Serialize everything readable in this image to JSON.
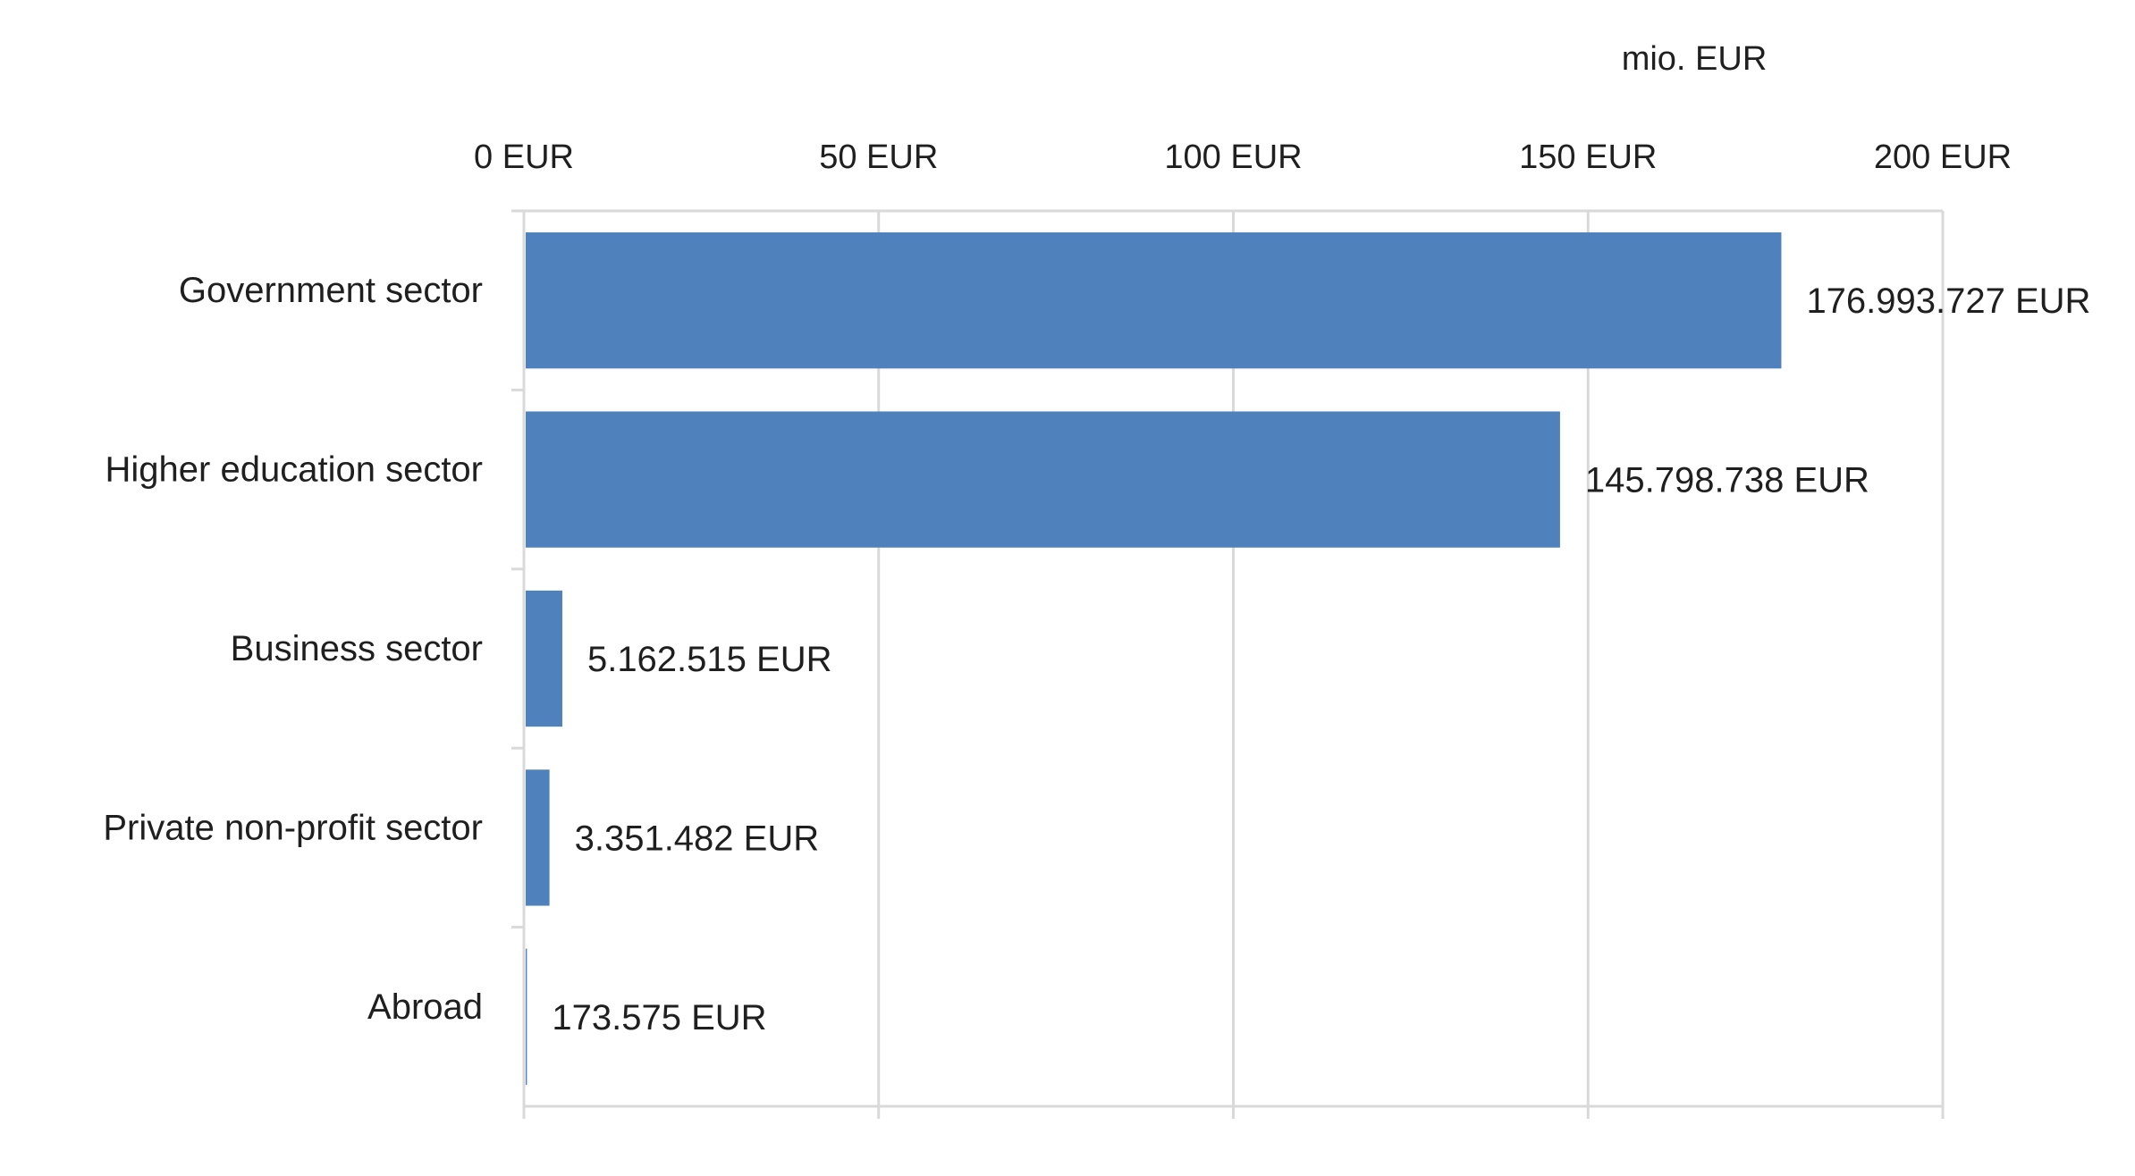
{
  "chart_data": {
    "type": "bar",
    "orientation": "horizontal",
    "unit_label": "mio. EUR",
    "title": "",
    "xlabel": "",
    "ylabel": "",
    "xlim": [
      0,
      200
    ],
    "x_ticks": [
      0,
      50,
      100,
      150,
      200
    ],
    "x_tick_labels": [
      "0 EUR",
      "50 EUR",
      "100 EUR",
      "150 EUR",
      "200 EUR"
    ],
    "x_axis_position": "top",
    "grid": true,
    "legend": "none",
    "categories": [
      "Government sector",
      "Higher education sector",
      "Business sector",
      "Private non-profit sector",
      "Abroad"
    ],
    "values": [
      176.993727,
      145.798738,
      5.162515,
      3.351482,
      0.173575
    ],
    "data_labels": [
      "176.993.727 EUR",
      "145.798.738 EUR",
      "5.162.515 EUR",
      "3.351.482 EUR",
      "173.575 EUR"
    ],
    "colors": {
      "bar": "#4f81bd",
      "grid": "#d9d9d9",
      "text": "#1f1f1f"
    }
  }
}
